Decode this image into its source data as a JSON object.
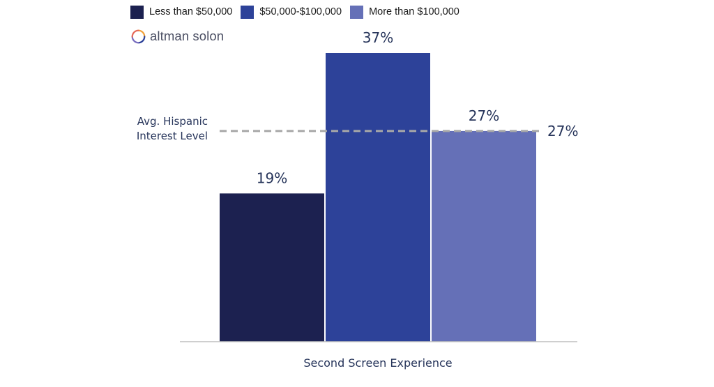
{
  "chart_data": {
    "type": "bar",
    "categories": [
      "Second Screen Experience"
    ],
    "series": [
      {
        "name": "Less than $50,000",
        "values": [
          19
        ],
        "color": "#1c2150"
      },
      {
        "name": "$50,000-$100,000",
        "values": [
          37
        ],
        "color": "#2d4299"
      },
      {
        "name": "More than $100,000",
        "values": [
          27
        ],
        "color": "#6570b7"
      }
    ],
    "value_labels": [
      "19%",
      "37%",
      "27%"
    ],
    "reference_line": {
      "label_lines": [
        "Avg. Hispanic",
        "Interest Level"
      ],
      "value": 27,
      "value_label": "27%",
      "color": "#a8a8a8"
    },
    "xlabel": "Second Screen Experience",
    "ylabel": "",
    "ylim": [
      0,
      37
    ],
    "legend_position": "top-left",
    "grid": false
  },
  "logo": {
    "text": "altman solon"
  }
}
